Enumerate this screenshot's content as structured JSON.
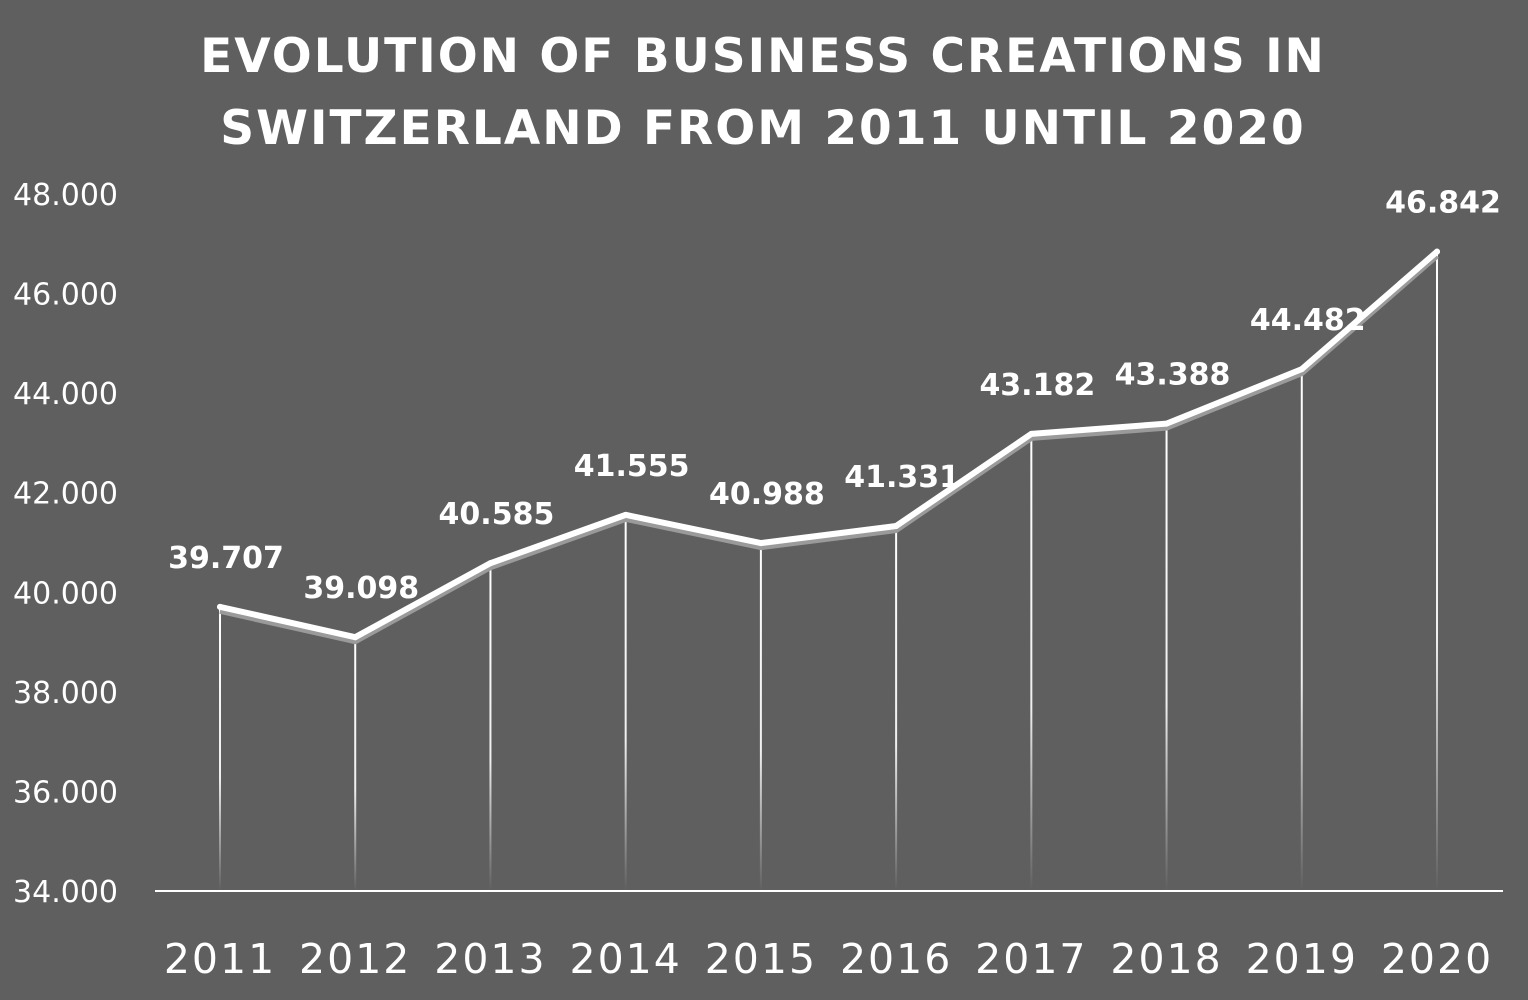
{
  "chart_data": {
    "type": "line",
    "title": [
      "EVOLUTION OF BUSINESS CREATIONS IN",
      "SWITZERLAND FROM 2011 UNTIL 2020"
    ],
    "xlabel": "",
    "ylabel": "",
    "categories": [
      "2011",
      "2012",
      "2013",
      "2014",
      "2015",
      "2016",
      "2017",
      "2018",
      "2019",
      "2020"
    ],
    "values": [
      39707,
      39098,
      40585,
      41555,
      40988,
      41331,
      43182,
      43388,
      44482,
      46842
    ],
    "data_labels": [
      "39.707",
      "39.098",
      "40.585",
      "41.555",
      "40.988",
      "41.331",
      "43.182",
      "43.388",
      "44.482",
      "46.842"
    ],
    "ylim": [
      34000,
      48000
    ],
    "yticks": [
      34000,
      36000,
      38000,
      40000,
      42000,
      44000,
      46000,
      48000
    ],
    "ytick_labels": [
      "34.000",
      "36.000",
      "38.000",
      "40.000",
      "42.000",
      "44.000",
      "46.000",
      "48.000"
    ],
    "grid": false,
    "drop_lines": true,
    "legend": "none",
    "colors": {
      "background": "#5f5f5f",
      "line": "#ffffff",
      "shadow": "#9a9a9a",
      "text": "#ffffff"
    }
  }
}
